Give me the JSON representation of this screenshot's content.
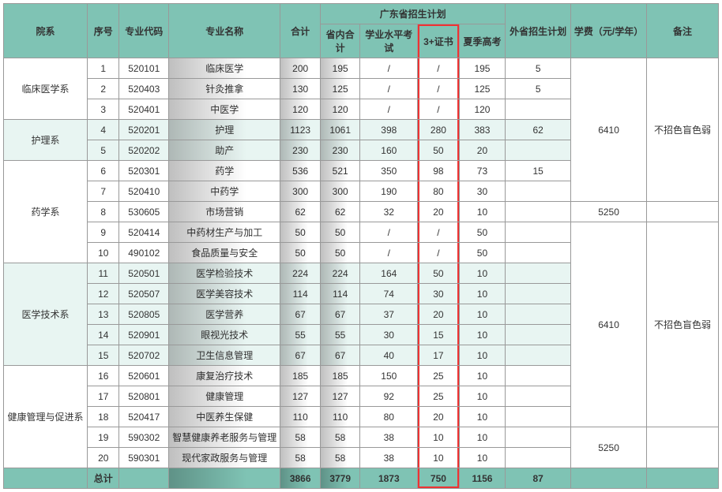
{
  "columns": {
    "dept": "院系",
    "seq": "序号",
    "code": "专业代码",
    "major": "专业名称",
    "total": "合计",
    "gd_group": "广东省招生计划",
    "gd_sub": "省内合计",
    "exam": "学业水平考试",
    "cert": "3+证书",
    "summer": "夏季高考",
    "other": "外省招生计划",
    "fee": "学费（元/学年）",
    "note": "备注"
  },
  "depts": [
    {
      "name": "临床医学系",
      "alt": false,
      "rows": [
        {
          "seq": "1",
          "code": "520101",
          "major": "临床医学",
          "total": "200",
          "sub": "195",
          "exam": "/",
          "cert": "/",
          "summer": "195",
          "other": "5"
        },
        {
          "seq": "2",
          "code": "520403",
          "major": "针灸推拿",
          "total": "130",
          "sub": "125",
          "exam": "/",
          "cert": "/",
          "summer": "125",
          "other": "5"
        },
        {
          "seq": "3",
          "code": "520401",
          "major": "中医学",
          "total": "120",
          "sub": "120",
          "exam": "/",
          "cert": "/",
          "summer": "120",
          "other": ""
        }
      ]
    },
    {
      "name": "护理系",
      "alt": true,
      "rows": [
        {
          "seq": "4",
          "code": "520201",
          "major": "护理",
          "total": "1123",
          "sub": "1061",
          "exam": "398",
          "cert": "280",
          "summer": "383",
          "other": "62"
        },
        {
          "seq": "5",
          "code": "520202",
          "major": "助产",
          "total": "230",
          "sub": "230",
          "exam": "160",
          "cert": "50",
          "summer": "20",
          "other": ""
        }
      ]
    },
    {
      "name": "药学系",
      "alt": false,
      "rows": [
        {
          "seq": "6",
          "code": "520301",
          "major": "药学",
          "total": "536",
          "sub": "521",
          "exam": "350",
          "cert": "98",
          "summer": "73",
          "other": "15"
        },
        {
          "seq": "7",
          "code": "520410",
          "major": "中药学",
          "total": "300",
          "sub": "300",
          "exam": "190",
          "cert": "80",
          "summer": "30",
          "other": ""
        },
        {
          "seq": "8",
          "code": "530605",
          "major": "市场营销",
          "total": "62",
          "sub": "62",
          "exam": "32",
          "cert": "20",
          "summer": "10",
          "other": ""
        },
        {
          "seq": "9",
          "code": "520414",
          "major": "中药材生产与加工",
          "total": "50",
          "sub": "50",
          "exam": "/",
          "cert": "/",
          "summer": "50",
          "other": ""
        },
        {
          "seq": "10",
          "code": "490102",
          "major": "食品质量与安全",
          "total": "50",
          "sub": "50",
          "exam": "/",
          "cert": "/",
          "summer": "50",
          "other": ""
        }
      ]
    },
    {
      "name": "医学技术系",
      "alt": true,
      "rows": [
        {
          "seq": "11",
          "code": "520501",
          "major": "医学检验技术",
          "total": "224",
          "sub": "224",
          "exam": "164",
          "cert": "50",
          "summer": "10",
          "other": ""
        },
        {
          "seq": "12",
          "code": "520507",
          "major": "医学美容技术",
          "total": "114",
          "sub": "114",
          "exam": "74",
          "cert": "30",
          "summer": "10",
          "other": ""
        },
        {
          "seq": "13",
          "code": "520805",
          "major": "医学营养",
          "total": "67",
          "sub": "67",
          "exam": "37",
          "cert": "20",
          "summer": "10",
          "other": ""
        },
        {
          "seq": "14",
          "code": "520901",
          "major": "眼视光技术",
          "total": "55",
          "sub": "55",
          "exam": "30",
          "cert": "15",
          "summer": "10",
          "other": ""
        },
        {
          "seq": "15",
          "code": "520702",
          "major": "卫生信息管理",
          "total": "67",
          "sub": "67",
          "exam": "40",
          "cert": "17",
          "summer": "10",
          "other": ""
        }
      ]
    },
    {
      "name": "健康管理与促进系",
      "alt": false,
      "rows": [
        {
          "seq": "16",
          "code": "520601",
          "major": "康复治疗技术",
          "total": "185",
          "sub": "185",
          "exam": "150",
          "cert": "25",
          "summer": "10",
          "other": ""
        },
        {
          "seq": "17",
          "code": "520801",
          "major": "健康管理",
          "total": "127",
          "sub": "127",
          "exam": "92",
          "cert": "25",
          "summer": "10",
          "other": ""
        },
        {
          "seq": "18",
          "code": "520417",
          "major": "中医养生保健",
          "total": "110",
          "sub": "110",
          "exam": "80",
          "cert": "20",
          "summer": "10",
          "other": ""
        },
        {
          "seq": "19",
          "code": "590302",
          "major": "智慧健康养老服务与管理",
          "total": "58",
          "sub": "58",
          "exam": "38",
          "cert": "10",
          "summer": "10",
          "other": ""
        },
        {
          "seq": "20",
          "code": "590301",
          "major": "现代家政服务与管理",
          "total": "58",
          "sub": "58",
          "exam": "38",
          "cert": "10",
          "summer": "10",
          "other": ""
        }
      ]
    }
  ],
  "fees": [
    {
      "value": "6410",
      "span": 7
    },
    {
      "value": "5250",
      "span": 1
    },
    {
      "value": "6410",
      "span": 10
    },
    {
      "value": "5250",
      "span": 2
    }
  ],
  "notes": [
    {
      "value": "不招色盲色弱",
      "span": 7
    },
    {
      "value": "",
      "span": 1
    },
    {
      "value": "不招色盲色弱",
      "span": 10
    },
    {
      "value": "",
      "span": 2
    }
  ],
  "totals": {
    "label": "总计",
    "total": "3866",
    "sub": "3779",
    "exam": "1873",
    "cert": "750",
    "summer": "1156",
    "other": "87"
  },
  "widths": {
    "dept": 105,
    "seq": 40,
    "code": 62,
    "major": 140,
    "total": 50,
    "sub": 50,
    "exam": 72,
    "cert": 52,
    "summer": 58,
    "other": 82,
    "fee": 95,
    "note": 90
  },
  "colors": {
    "header": "#7fc3b4",
    "alt": "#e8f5f2",
    "highlight": "#e33",
    "border": "#999"
  }
}
